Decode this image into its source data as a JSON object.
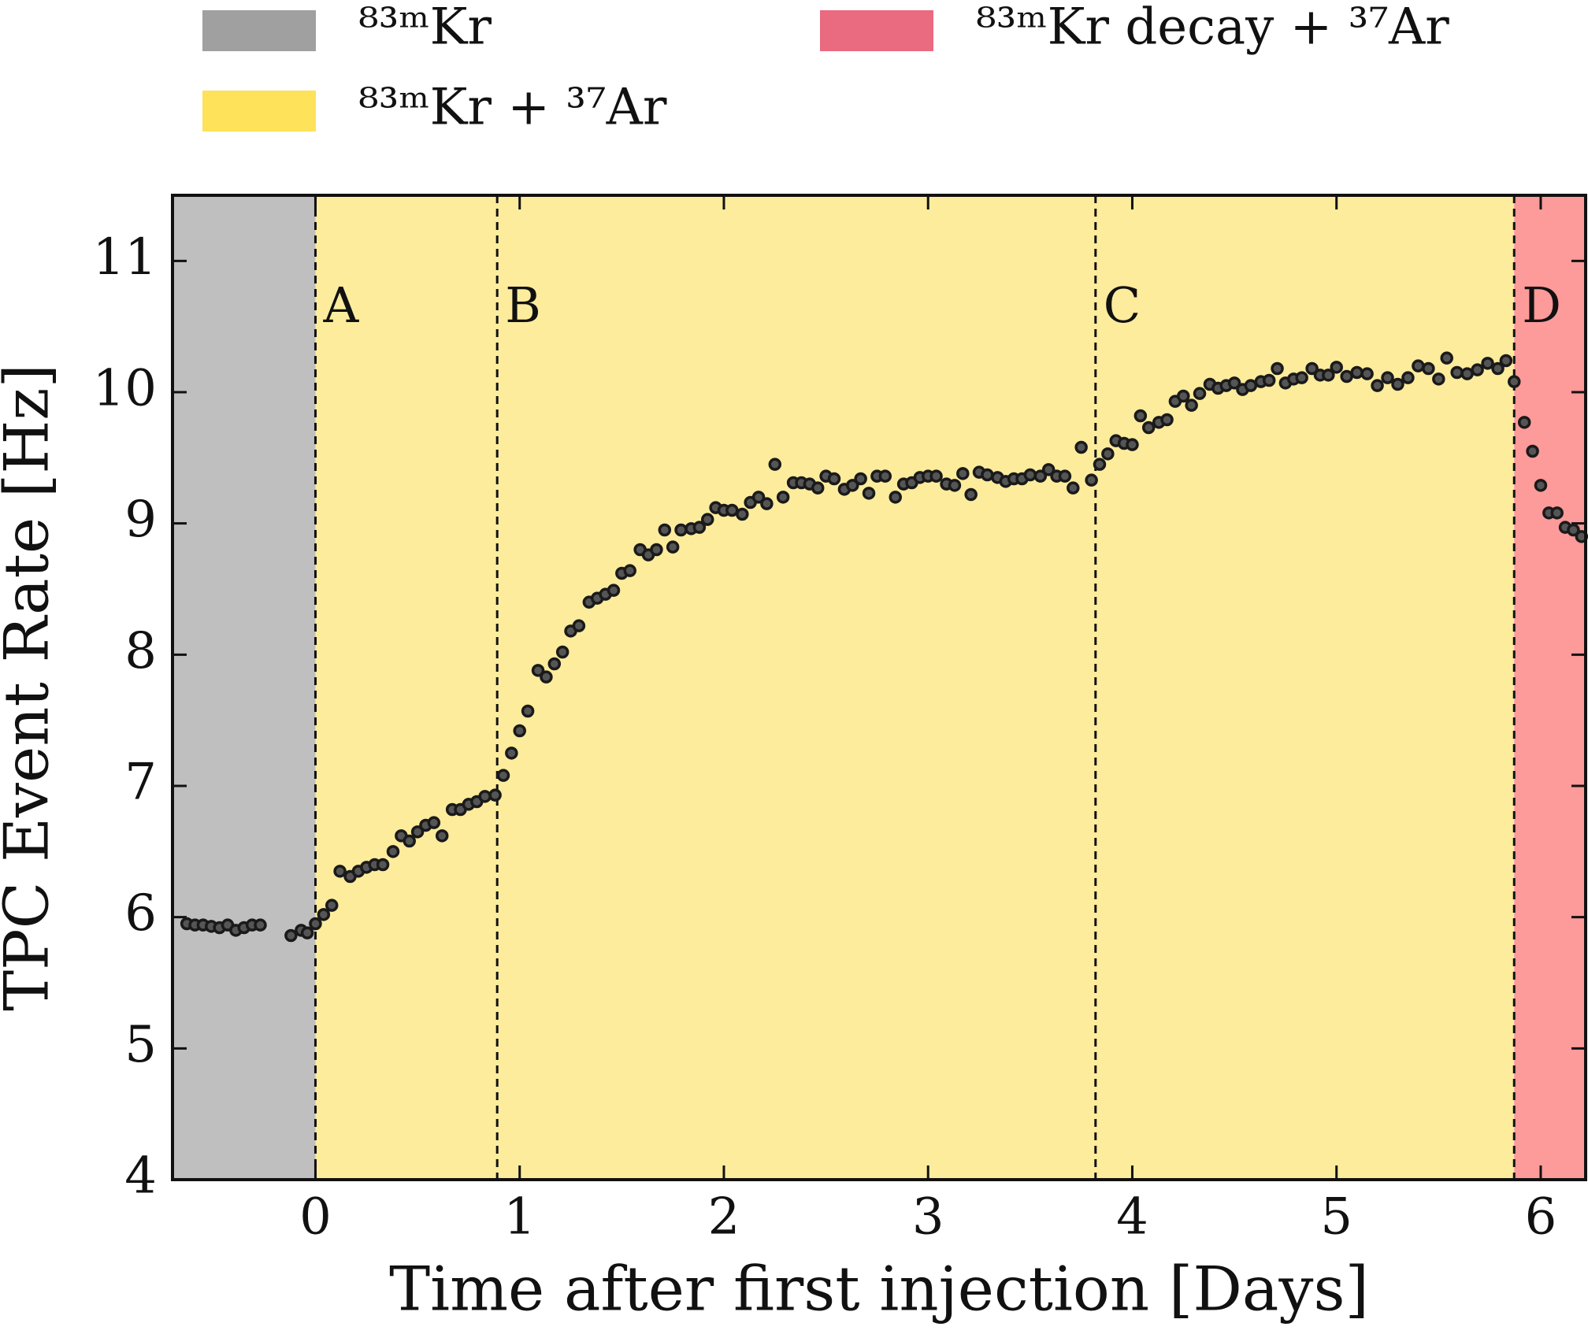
{
  "chart_data": {
    "type": "scatter",
    "xlabel": "Time after first injection [Days]",
    "ylabel": "TPC Event Rate [Hz]",
    "xlim": [
      -0.7,
      6.22
    ],
    "ylim": [
      4,
      11.5
    ],
    "xticks": [
      0,
      1,
      2,
      3,
      4,
      5,
      6
    ],
    "yticks": [
      4,
      5,
      6,
      7,
      8,
      9,
      10,
      11
    ],
    "regions": [
      {
        "name": "⁸³ᵐKr",
        "color": "#bfbfbf",
        "legend_color": "#a0a0a0",
        "range": [
          -0.7,
          0
        ]
      },
      {
        "name": "⁸³ᵐKr + ³⁷Ar",
        "color": "#fcec9c",
        "legend_color": "#fde25a",
        "range": [
          0,
          5.87
        ]
      },
      {
        "name": "⁸³ᵐKr decay + ³⁷Ar",
        "color": "#fd9a9a",
        "legend_color": "#ea6a80",
        "range": [
          5.87,
          6.22
        ]
      }
    ],
    "markers": [
      {
        "x": 0,
        "label": "A"
      },
      {
        "x": 0.89,
        "label": "B"
      },
      {
        "x": 3.82,
        "label": "C"
      },
      {
        "x": 5.87,
        "label": "D"
      }
    ],
    "series": [
      {
        "color": "#1a1a1a",
        "x": [
          -0.63,
          -0.59,
          -0.55,
          -0.51,
          -0.47,
          -0.43,
          -0.39,
          -0.35,
          -0.31,
          -0.27,
          -0.12,
          -0.07,
          -0.04,
          0.0,
          0.04,
          0.08,
          0.12,
          0.17,
          0.21,
          0.25,
          0.29,
          0.33,
          0.38,
          0.42,
          0.46,
          0.5,
          0.54,
          0.58,
          0.62,
          0.67,
          0.71,
          0.75,
          0.79,
          0.83,
          0.88,
          0.92,
          0.96,
          1.0,
          1.04,
          1.09,
          1.13,
          1.17,
          1.21,
          1.25,
          1.29,
          1.34,
          1.38,
          1.42,
          1.46,
          1.5,
          1.54,
          1.59,
          1.63,
          1.67,
          1.71,
          1.75,
          1.79,
          1.84,
          1.88,
          1.92,
          1.96,
          2.0,
          2.04,
          2.09,
          2.13,
          2.17,
          2.21,
          2.25,
          2.29,
          2.34,
          2.38,
          2.42,
          2.46,
          2.5,
          2.54,
          2.59,
          2.63,
          2.67,
          2.71,
          2.75,
          2.79,
          2.84,
          2.88,
          2.92,
          2.96,
          3.0,
          3.04,
          3.09,
          3.13,
          3.17,
          3.21,
          3.25,
          3.29,
          3.34,
          3.38,
          3.42,
          3.46,
          3.5,
          3.55,
          3.59,
          3.63,
          3.67,
          3.71,
          3.75,
          3.8,
          3.84,
          3.88,
          3.92,
          3.96,
          4.0,
          4.04,
          4.08,
          4.13,
          4.17,
          4.21,
          4.25,
          4.29,
          4.33,
          4.38,
          4.42,
          4.46,
          4.5,
          4.54,
          4.58,
          4.63,
          4.67,
          4.71,
          4.75,
          4.79,
          4.83,
          4.88,
          4.92,
          4.96,
          5.0,
          5.05,
          5.1,
          5.15,
          5.2,
          5.25,
          5.3,
          5.35,
          5.4,
          5.45,
          5.5,
          5.54,
          5.59,
          5.64,
          5.69,
          5.74,
          5.79,
          5.83,
          5.87,
          5.92,
          5.96,
          6.0,
          6.04,
          6.08,
          6.12,
          6.16,
          6.2
        ],
        "values": [
          5.95,
          5.94,
          5.94,
          5.93,
          5.92,
          5.94,
          5.9,
          5.92,
          5.94,
          5.94,
          5.86,
          5.9,
          5.88,
          5.95,
          6.02,
          6.09,
          6.35,
          6.31,
          6.35,
          6.38,
          6.4,
          6.4,
          6.5,
          6.62,
          6.58,
          6.65,
          6.7,
          6.72,
          6.62,
          6.82,
          6.82,
          6.86,
          6.88,
          6.92,
          6.93,
          7.08,
          7.25,
          7.42,
          7.57,
          7.88,
          7.83,
          7.93,
          8.02,
          8.18,
          8.22,
          8.4,
          8.43,
          8.46,
          8.49,
          8.62,
          8.64,
          8.8,
          8.76,
          8.8,
          8.95,
          8.82,
          8.95,
          8.96,
          8.97,
          9.03,
          9.12,
          9.1,
          9.1,
          9.07,
          9.16,
          9.2,
          9.15,
          9.45,
          9.2,
          9.31,
          9.31,
          9.3,
          9.27,
          9.36,
          9.34,
          9.26,
          9.29,
          9.34,
          9.23,
          9.36,
          9.36,
          9.2,
          9.3,
          9.31,
          9.35,
          9.36,
          9.36,
          9.3,
          9.29,
          9.38,
          9.22,
          9.39,
          9.37,
          9.35,
          9.32,
          9.34,
          9.34,
          9.37,
          9.36,
          9.41,
          9.36,
          9.36,
          9.27,
          9.58,
          9.33,
          9.45,
          9.53,
          9.63,
          9.61,
          9.6,
          9.82,
          9.73,
          9.77,
          9.79,
          9.93,
          9.97,
          9.9,
          9.99,
          10.06,
          10.03,
          10.05,
          10.07,
          10.02,
          10.05,
          10.08,
          10.09,
          10.18,
          10.07,
          10.1,
          10.11,
          10.18,
          10.13,
          10.13,
          10.19,
          10.12,
          10.15,
          10.14,
          10.05,
          10.11,
          10.06,
          10.11,
          10.2,
          10.18,
          10.1,
          10.26,
          10.15,
          10.14,
          10.17,
          10.22,
          10.18,
          10.24,
          10.08,
          9.77,
          9.55,
          9.29,
          9.08,
          9.08,
          8.97,
          8.95,
          8.9
        ]
      }
    ]
  }
}
